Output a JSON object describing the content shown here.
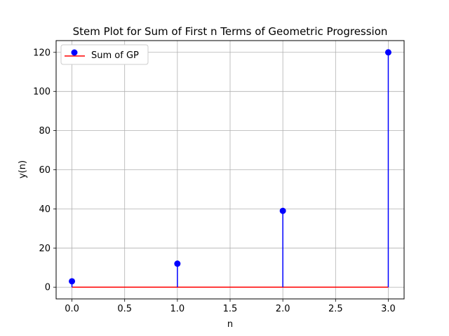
{
  "chart_data": {
    "type": "scatter",
    "subtype": "stem",
    "title": "Stem Plot for Sum of First n Terms of Geometric Progression",
    "xlabel": "n",
    "ylabel": "y(n)",
    "x": [
      0,
      1,
      2,
      3
    ],
    "series": [
      {
        "name": "Sum of GP",
        "values": [
          3,
          12,
          39,
          120
        ]
      }
    ],
    "xlim": [
      -0.15,
      3.15
    ],
    "ylim": [
      -6,
      126
    ],
    "xticks": [
      0,
      0.5,
      1,
      1.5,
      2,
      2.5,
      3
    ],
    "xtick_labels": [
      "0.0",
      "0.5",
      "1.0",
      "1.5",
      "2.0",
      "2.5",
      "3.0"
    ],
    "yticks": [
      0,
      20,
      40,
      60,
      80,
      100,
      120
    ],
    "ytick_labels": [
      "0",
      "20",
      "40",
      "60",
      "80",
      "100",
      "120"
    ],
    "baseline": 0,
    "grid": true,
    "legend_position": "top-left",
    "colors": {
      "marker": "#0000ff",
      "stem": "#0000ff",
      "baseline": "#ff0000",
      "grid": "#b0b0b0"
    }
  }
}
